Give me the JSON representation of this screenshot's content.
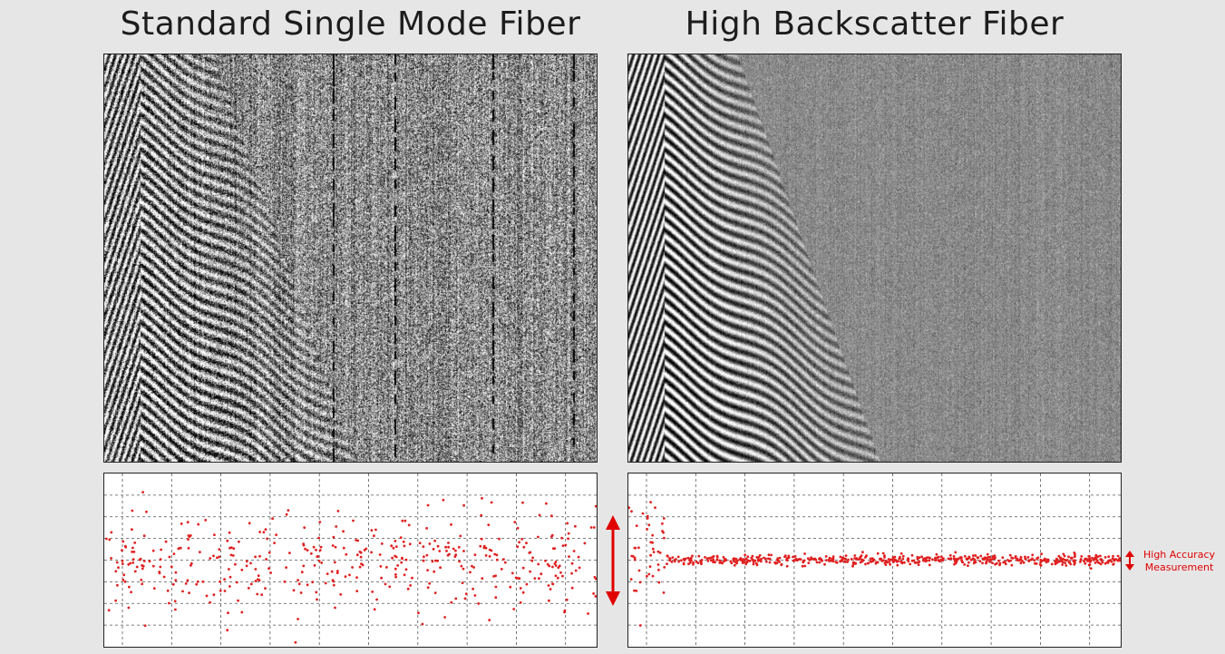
{
  "titles": {
    "left": "Standard Single Mode Fiber",
    "right": "High Backscatter Fiber"
  },
  "annotation": {
    "line1": "High Accuracy",
    "line2": "Measurement"
  },
  "colors": {
    "background": "#e6e6e6",
    "points": "#e02020",
    "arrow": "#e00000",
    "grid": "#555555"
  },
  "chart_data": [
    {
      "type": "heatmap",
      "title": "Standard Single Mode Fiber",
      "description_values": {
        "signal_contrast": "high-noise",
        "noise_level": 0.9
      },
      "xlabel": "",
      "ylabel": ""
    },
    {
      "type": "heatmap",
      "title": "High Backscatter Fiber",
      "description_values": {
        "signal_contrast": "low-noise",
        "noise_level": 0.25
      },
      "xlabel": "",
      "ylabel": ""
    },
    {
      "type": "scatter",
      "title": "Standard Single Mode Fiber",
      "ylim": [
        -4,
        4
      ],
      "n_points": 420,
      "center": 0,
      "spread": 1.1,
      "grid": true
    },
    {
      "type": "scatter",
      "title": "High Backscatter Fiber",
      "ylim": [
        -4,
        4
      ],
      "n_points": 600,
      "center": 0,
      "spread": 0.12,
      "grid": true
    }
  ]
}
